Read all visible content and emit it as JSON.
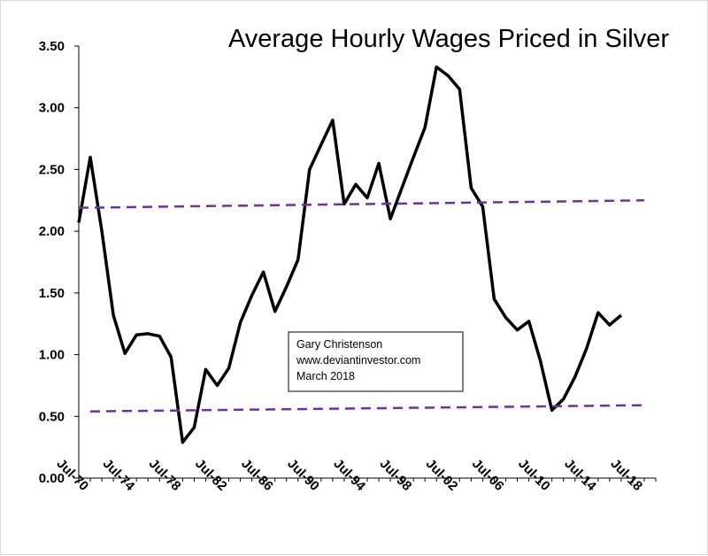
{
  "chart_data": {
    "type": "line",
    "title": "Average Hourly Wages Priced in Silver",
    "xlabel": "",
    "ylabel": "",
    "x_tick_labels": [
      "Jul-70",
      "Jul-74",
      "Jul-78",
      "Jul-82",
      "Jul-86",
      "Jul-90",
      "Jul-94",
      "Jul-98",
      "Jul-02",
      "Jul-06",
      "Jul-10",
      "Jul-14",
      "Jul-18"
    ],
    "x_tick_years": [
      1970,
      1974,
      1978,
      1982,
      1986,
      1990,
      1994,
      1998,
      2002,
      2006,
      2010,
      2014,
      2018
    ],
    "xlim": [
      1970,
      2020
    ],
    "ylim": [
      0,
      3.5
    ],
    "y_ticks": [
      0.0,
      0.5,
      1.0,
      1.5,
      2.0,
      2.5,
      3.0,
      3.5
    ],
    "y_tick_labels": [
      "0.00",
      "0.50",
      "1.00",
      "1.50",
      "2.00",
      "2.50",
      "3.00",
      "3.50"
    ],
    "grid": false,
    "series": [
      {
        "color": "#000000",
        "style": "solid",
        "x": [
          1970,
          1971,
          1972,
          1973,
          1974,
          1975,
          1976,
          1977,
          1978,
          1979,
          1980,
          1981,
          1982,
          1983,
          1984,
          1985,
          1986,
          1987,
          1988,
          1989,
          1990,
          1991,
          1992,
          1993,
          1994,
          1995,
          1996,
          1997,
          1998,
          1999,
          2000,
          2001,
          2002,
          2003,
          2004,
          2005,
          2006,
          2007,
          2008,
          2009,
          2010,
          2011,
          2012,
          2013,
          2014,
          2015,
          2016,
          2017
        ],
        "y": [
          2.07,
          2.6,
          2.0,
          1.32,
          1.01,
          1.16,
          1.17,
          1.15,
          0.98,
          0.29,
          0.41,
          0.88,
          0.75,
          0.89,
          1.26,
          1.48,
          1.67,
          1.35,
          1.55,
          1.77,
          2.5,
          2.7,
          2.9,
          2.22,
          2.38,
          2.27,
          2.55,
          2.1,
          2.35,
          2.6,
          2.84,
          3.33,
          3.26,
          3.15,
          2.35,
          2.2,
          1.45,
          1.3,
          1.2,
          1.27,
          0.95,
          0.55,
          0.64,
          0.82,
          1.05,
          1.34,
          1.24,
          1.32
        ]
      },
      {
        "color": "#7030a0",
        "style": "dashed",
        "x": [
          1970,
          2019
        ],
        "y": [
          2.19,
          2.25
        ]
      },
      {
        "color": "#7030a0",
        "style": "dashed",
        "x": [
          1971,
          2019
        ],
        "y": [
          0.54,
          0.59
        ]
      }
    ],
    "annotation": {
      "lines": [
        "Gary Christenson",
        "www.deviantinvestor.com",
        "March 2018"
      ]
    }
  }
}
